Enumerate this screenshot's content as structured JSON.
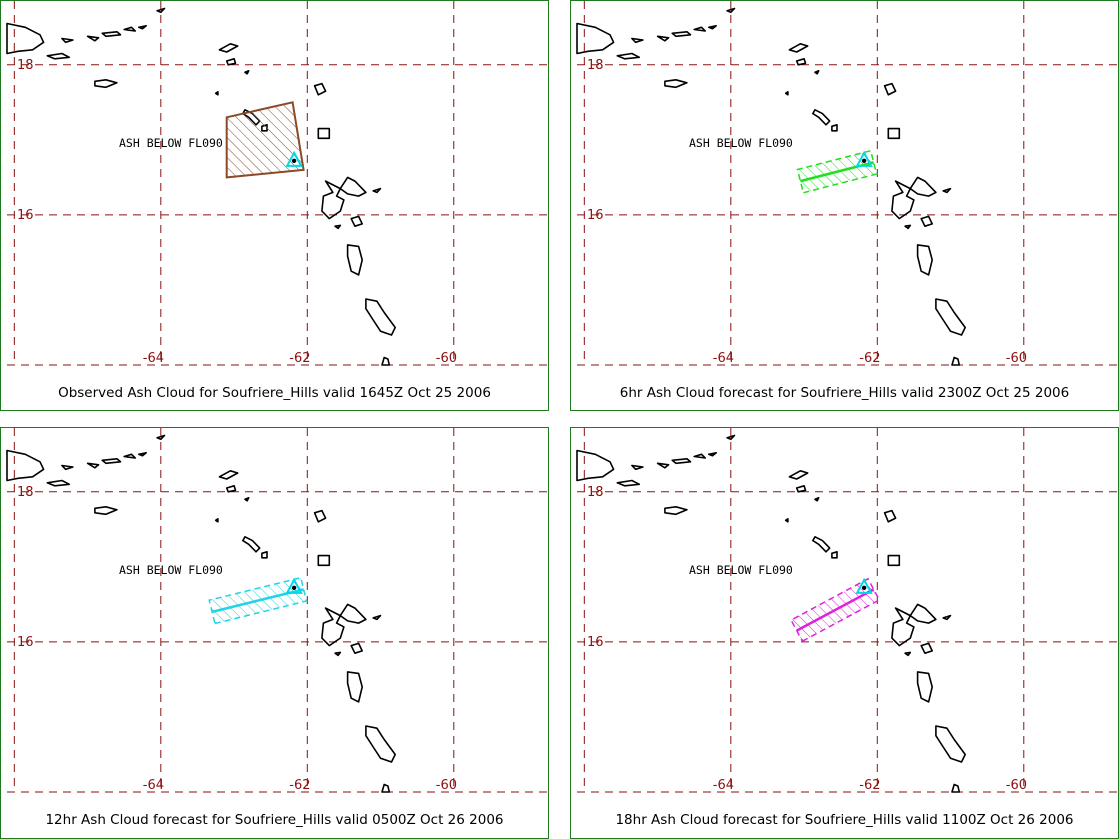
{
  "colors": {
    "grid": "#8b1010",
    "border": "#1f7a1f",
    "volcano_marker": "#00d8e8",
    "coast": "#000000"
  },
  "panels": [
    {
      "caption": "Observed Ash Cloud for Soufriere_Hills valid 1645Z Oct 25 2006",
      "label": "ASH BELOW FL090",
      "cloud_color": "#8b4a26",
      "cloud_type": "polygon",
      "cloud_points": [
        [
          -63.1,
          17.3
        ],
        [
          -62.2,
          17.5
        ],
        [
          -62.05,
          16.6
        ],
        [
          -63.1,
          16.5
        ]
      ]
    },
    {
      "caption": "6hr Ash Cloud forecast for Soufriere_Hills valid 2300Z Oct 25 2006",
      "label": "ASH BELOW FL090",
      "cloud_color": "#22dd22",
      "cloud_type": "line",
      "cloud_points": [
        [
          -63.05,
          16.45
        ],
        [
          -62.05,
          16.7
        ]
      ]
    },
    {
      "caption": "12hr Ash Cloud forecast for Soufriere_Hills valid 0500Z Oct 26 2006",
      "label": "ASH BELOW FL090",
      "cloud_color": "#22d4e4",
      "cloud_type": "line",
      "cloud_points": [
        [
          -63.3,
          16.4
        ],
        [
          -62.05,
          16.7
        ]
      ]
    },
    {
      "caption": "18hr Ash Cloud forecast for Soufriere_Hills valid 1100Z Oct 26 2006",
      "label": "ASH BELOW FL090",
      "cloud_color": "#dd22dd",
      "cloud_type": "line",
      "cloud_points": [
        [
          -63.1,
          16.15
        ],
        [
          -62.05,
          16.7
        ]
      ]
    }
  ],
  "map": {
    "lat_labels": [
      "18",
      "16"
    ],
    "lon_labels": [
      "-64",
      "-62",
      "-60"
    ],
    "lat_lines": [
      18,
      16
    ],
    "lon_lines": [
      -66,
      -64,
      -62,
      -60
    ],
    "lon_range": [
      -66.1,
      -58.7
    ],
    "lat_range": [
      14.0,
      18.85
    ],
    "volcano": {
      "lon": -62.18,
      "lat": 16.72,
      "name_icon": "volcano-triangle-icon"
    }
  }
}
